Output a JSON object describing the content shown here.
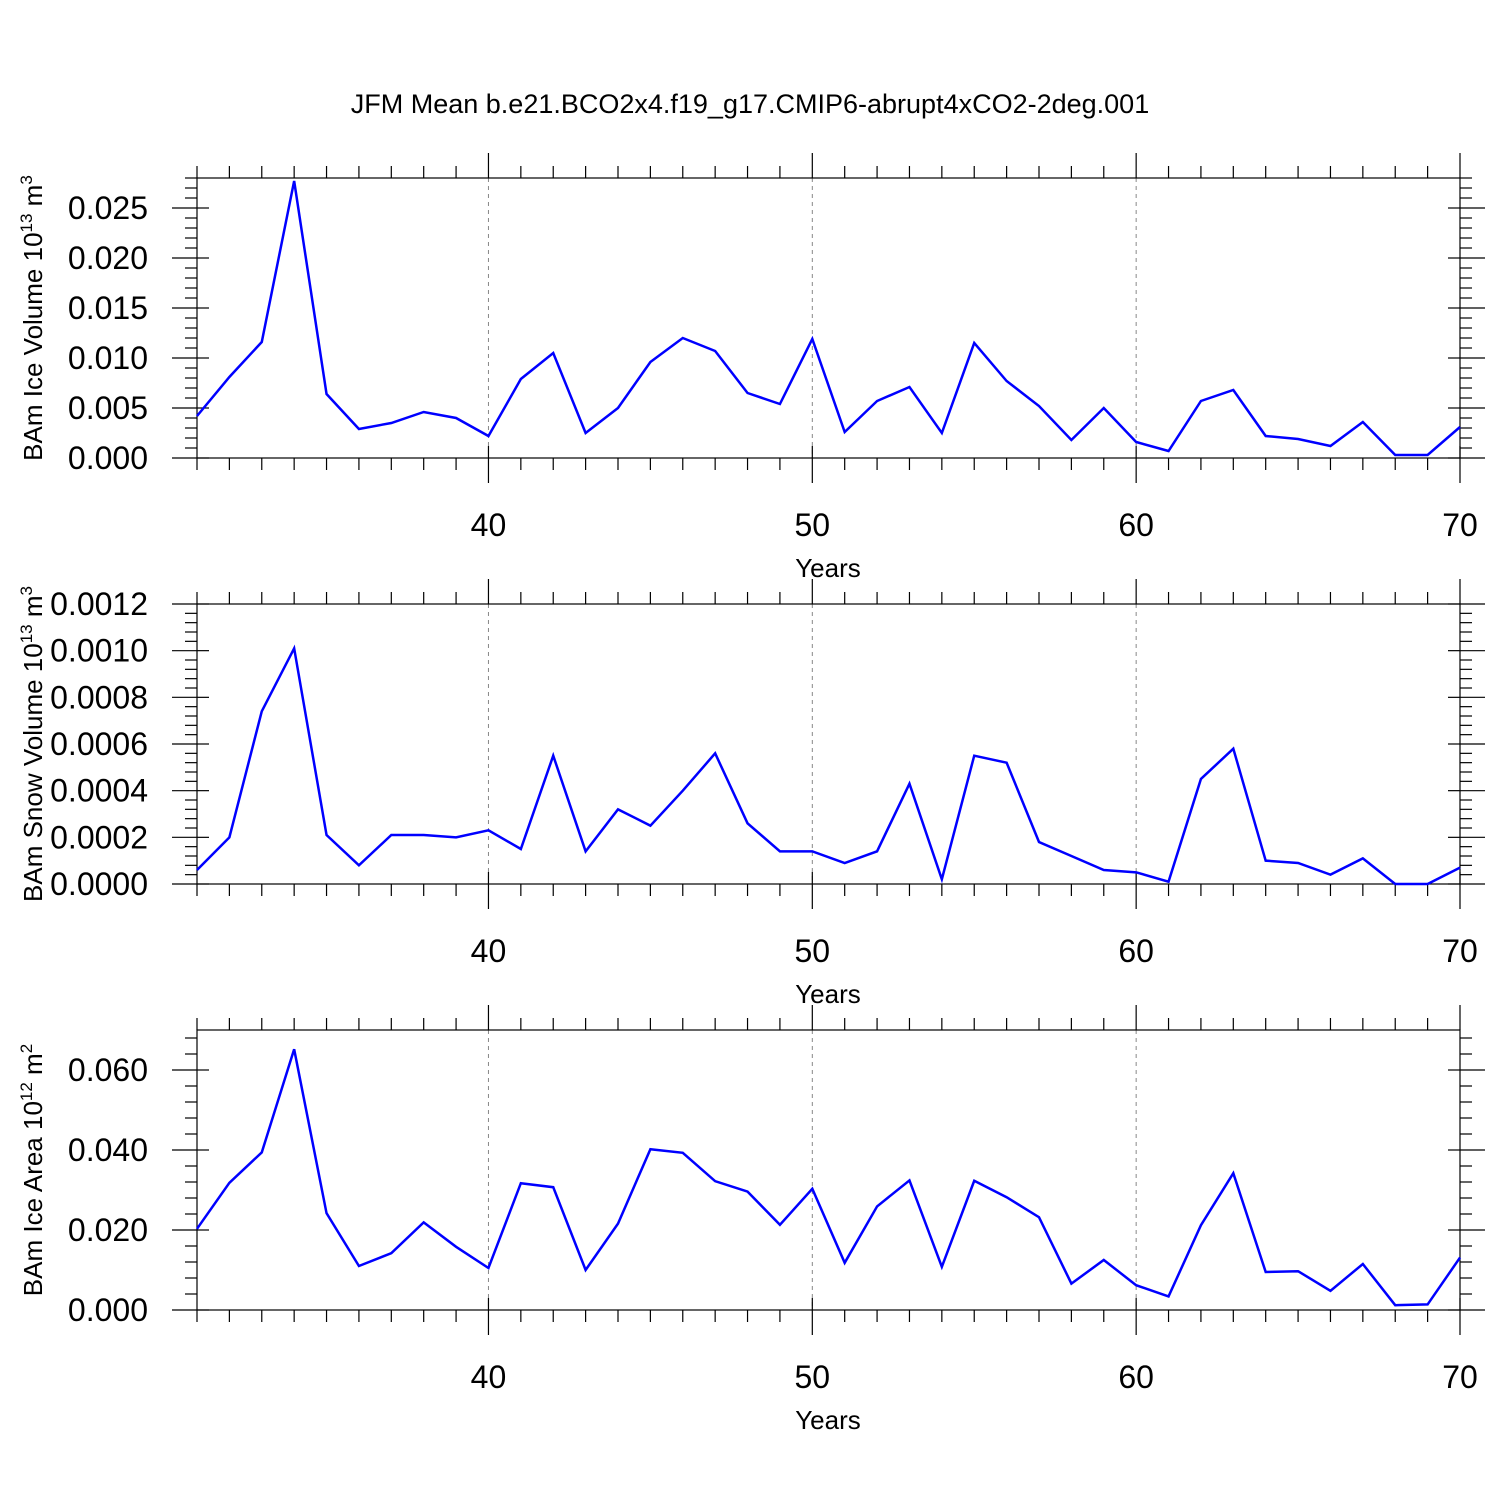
{
  "title": "JFM Mean b.e21.BCO2x4.f19_g17.CMIP6-abrupt4xCO2-2deg.001",
  "colors": {
    "line": "#0000ff",
    "grid": "#888888",
    "axis": "#000000"
  },
  "chart_data": [
    {
      "type": "line",
      "xlabel": "Years",
      "ylabel": "BAm Ice Volume 10",
      "ylabel_exp": "13",
      "ylabel_unit": " m",
      "ylabel_unit_exp": "3",
      "xlim": [
        31,
        70
      ],
      "ylim": [
        0,
        0.028
      ],
      "xticks": [
        40,
        50,
        60,
        70
      ],
      "xtick_labels": [
        "40",
        "50",
        "60",
        "70"
      ],
      "yticks": [
        0,
        0.005,
        0.01,
        0.015,
        0.02,
        0.025
      ],
      "ytick_labels": [
        "0.000",
        "0.005",
        "0.010",
        "0.015",
        "0.020",
        "0.025"
      ],
      "grid": "vertical dashed at labeled x ticks",
      "x": [
        31,
        32,
        33,
        34,
        35,
        36,
        37,
        38,
        39,
        40,
        41,
        42,
        43,
        44,
        45,
        46,
        47,
        48,
        49,
        50,
        51,
        52,
        53,
        54,
        55,
        56,
        57,
        58,
        59,
        60,
        61,
        62,
        63,
        64,
        65,
        66,
        67,
        68,
        69,
        70
      ],
      "series": [
        {
          "values": [
            0.0042,
            0.0081,
            0.0116,
            0.0277,
            0.0064,
            0.0029,
            0.0035,
            0.0046,
            0.004,
            0.0022,
            0.0079,
            0.0105,
            0.0025,
            0.005,
            0.0096,
            0.012,
            0.0107,
            0.0065,
            0.0054,
            0.0119,
            0.0026,
            0.0057,
            0.0071,
            0.0025,
            0.0115,
            0.0077,
            0.0052,
            0.0018,
            0.005,
            0.0016,
            0.0007,
            0.0057,
            0.0068,
            0.0022,
            0.0019,
            0.0012,
            0.0036,
            0.0003,
            0.0003,
            0.0031
          ]
        }
      ]
    },
    {
      "type": "line",
      "xlabel": "Years",
      "ylabel": "BAm Snow Volume 10",
      "ylabel_exp": "13",
      "ylabel_unit": " m",
      "ylabel_unit_exp": "3",
      "xlim": [
        31,
        70
      ],
      "ylim": [
        0,
        0.0012
      ],
      "xticks": [
        40,
        50,
        60,
        70
      ],
      "xtick_labels": [
        "40",
        "50",
        "60",
        "70"
      ],
      "yticks": [
        0,
        0.0002,
        0.0004,
        0.0006,
        0.0008,
        0.001,
        0.0012
      ],
      "ytick_labels": [
        "0.0000",
        "0.0002",
        "0.0004",
        "0.0006",
        "0.0008",
        "0.0010",
        "0.0012"
      ],
      "grid": "vertical dashed at labeled x ticks",
      "x": [
        31,
        32,
        33,
        34,
        35,
        36,
        37,
        38,
        39,
        40,
        41,
        42,
        43,
        44,
        45,
        46,
        47,
        48,
        49,
        50,
        51,
        52,
        53,
        54,
        55,
        56,
        57,
        58,
        59,
        60,
        61,
        62,
        63,
        64,
        65,
        66,
        67,
        68,
        69,
        70
      ],
      "series": [
        {
          "values": [
            6e-05,
            0.0002,
            0.00074,
            0.00101,
            0.00021,
            8e-05,
            0.00021,
            0.00021,
            0.0002,
            0.00023,
            0.00015,
            0.00055,
            0.00014,
            0.00032,
            0.00025,
            0.0004,
            0.00056,
            0.00026,
            0.00014,
            0.00014,
            9e-05,
            0.00014,
            0.00043,
            2e-05,
            0.00055,
            0.00052,
            0.00018,
            0.00012,
            6e-05,
            5e-05,
            1e-05,
            0.00045,
            0.00058,
            0.0001,
            9e-05,
            4e-05,
            0.00011,
            0.0,
            0.0,
            7e-05
          ]
        }
      ]
    },
    {
      "type": "line",
      "xlabel": "Years",
      "ylabel": "BAm Ice Area 10",
      "ylabel_exp": "12",
      "ylabel_unit": " m",
      "ylabel_unit_exp": "2",
      "xlim": [
        31,
        70
      ],
      "ylim": [
        0,
        0.07
      ],
      "xticks": [
        40,
        50,
        60,
        70
      ],
      "xtick_labels": [
        "40",
        "50",
        "60",
        "70"
      ],
      "yticks": [
        0,
        0.02,
        0.04,
        0.06
      ],
      "ytick_labels": [
        "0.000",
        "0.020",
        "0.040",
        "0.060"
      ],
      "grid": "vertical dashed at labeled x ticks",
      "x": [
        31,
        32,
        33,
        34,
        35,
        36,
        37,
        38,
        39,
        40,
        41,
        42,
        43,
        44,
        45,
        46,
        47,
        48,
        49,
        50,
        51,
        52,
        53,
        54,
        55,
        56,
        57,
        58,
        59,
        60,
        61,
        62,
        63,
        64,
        65,
        66,
        67,
        68,
        69,
        70
      ],
      "series": [
        {
          "values": [
            0.0203,
            0.0318,
            0.0394,
            0.0652,
            0.0242,
            0.011,
            0.0142,
            0.0219,
            0.0158,
            0.0105,
            0.0317,
            0.0307,
            0.01,
            0.0216,
            0.0402,
            0.0393,
            0.0322,
            0.0296,
            0.0213,
            0.0303,
            0.0118,
            0.0259,
            0.0324,
            0.0108,
            0.0323,
            0.0282,
            0.0232,
            0.0066,
            0.0125,
            0.0062,
            0.0034,
            0.0212,
            0.0342,
            0.0095,
            0.0097,
            0.0048,
            0.0115,
            0.0012,
            0.0014,
            0.0131
          ]
        }
      ]
    }
  ]
}
